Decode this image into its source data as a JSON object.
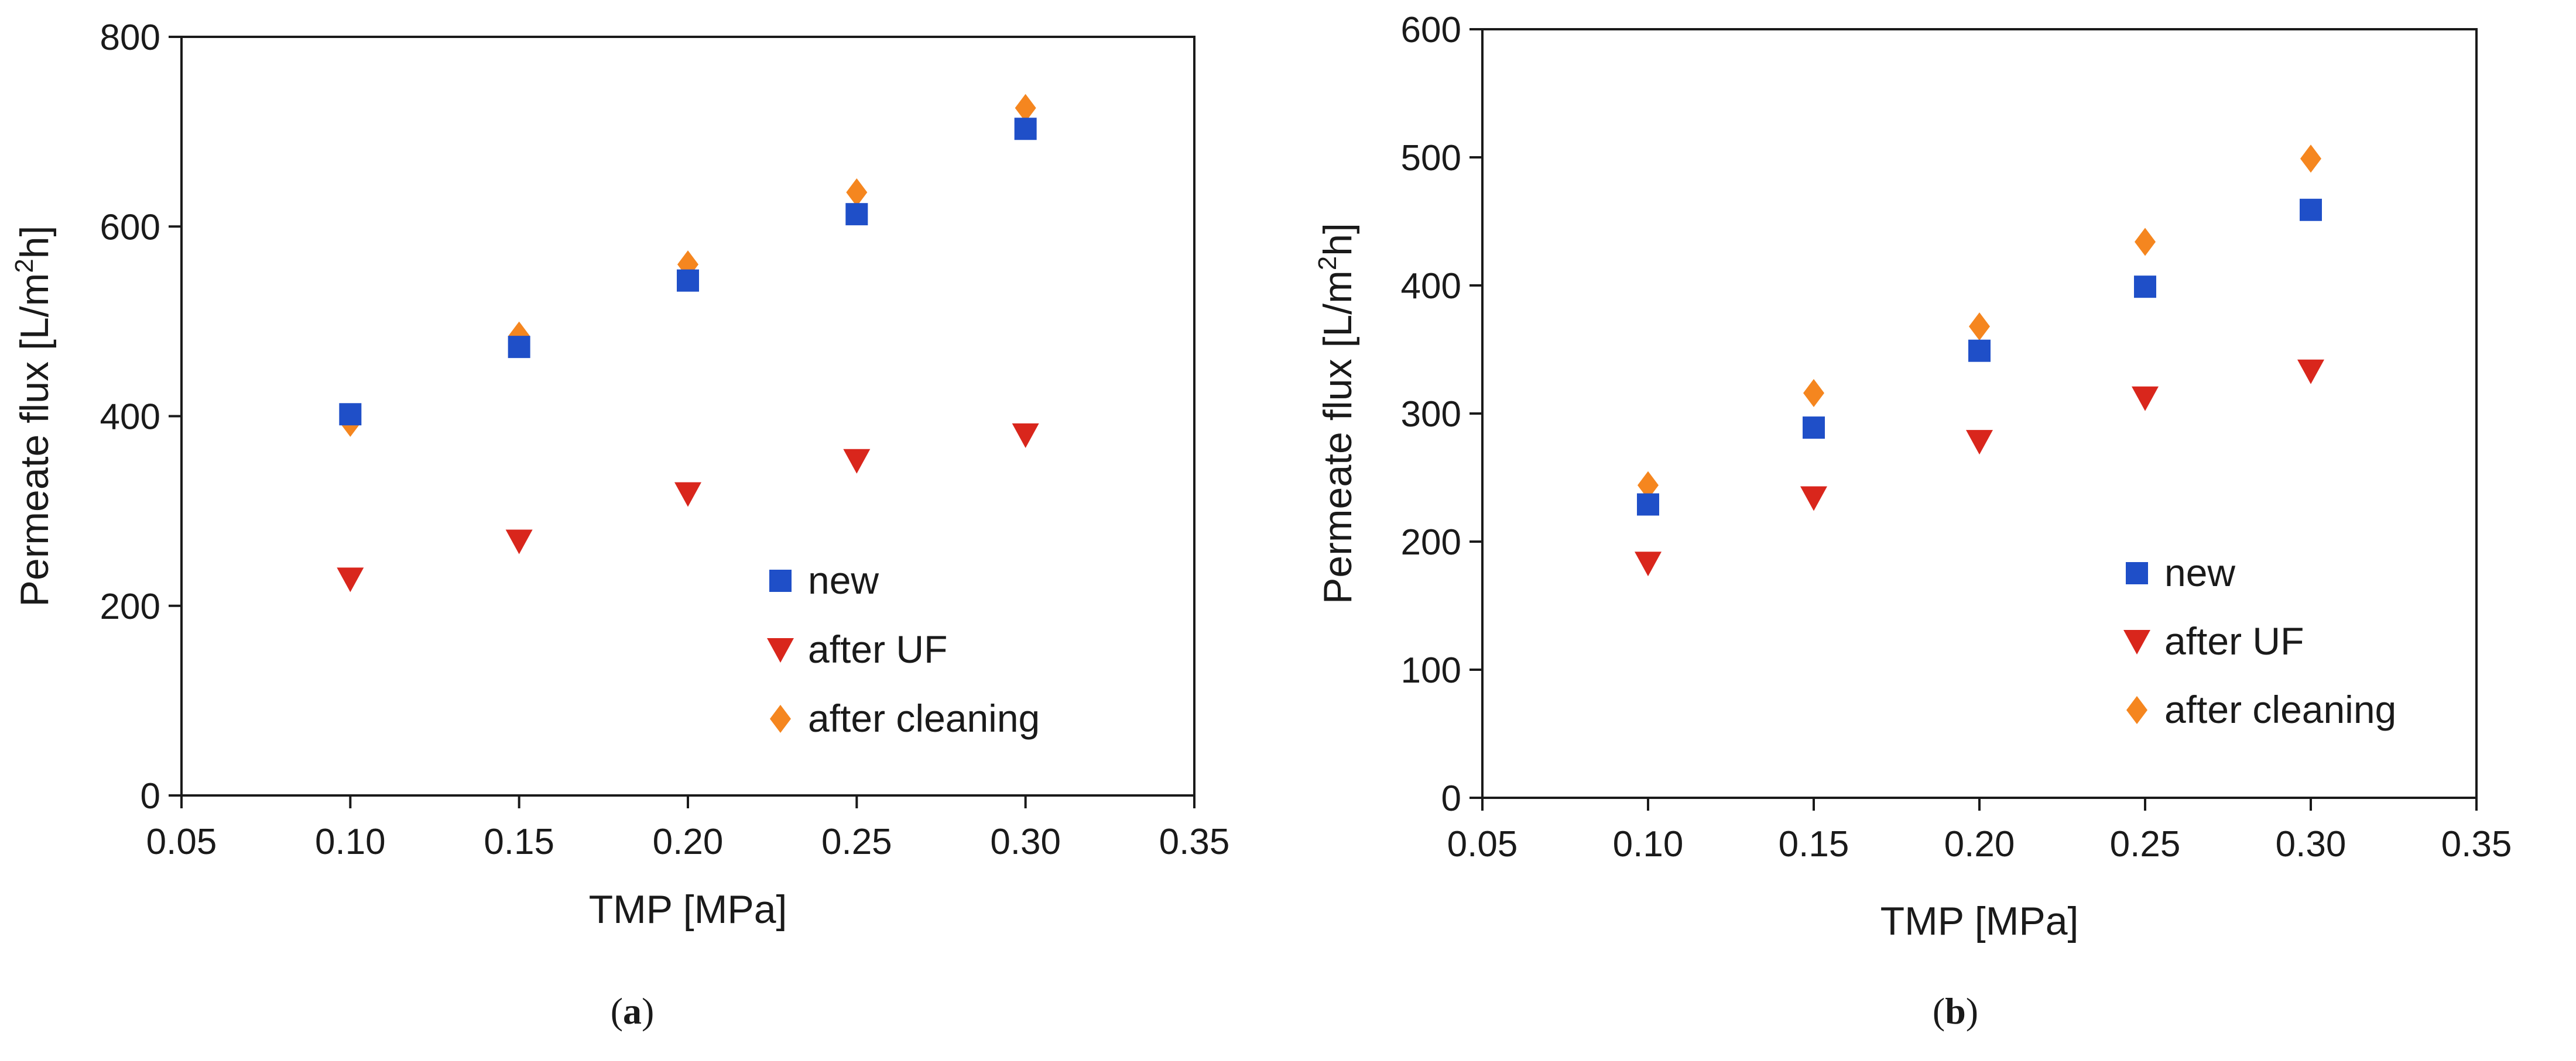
{
  "figure": {
    "panels": [
      "(a)",
      "(b)"
    ]
  },
  "chart_data": [
    {
      "type": "scatter",
      "panel_label_open": "(",
      "panel_label_letter": "a",
      "panel_label_close": ")",
      "xlabel": "TMP [MPa]",
      "ylabel_main": "Permeate flux [L/m",
      "ylabel_sup": "2",
      "ylabel_tail": "h]",
      "xlim": [
        0.05,
        0.35
      ],
      "ylim": [
        0,
        800
      ],
      "xticks": [
        0.05,
        0.1,
        0.15,
        0.2,
        0.25,
        0.3,
        0.35
      ],
      "xtick_labels": [
        "0.05",
        "0.10",
        "0.15",
        "0.20",
        "0.25",
        "0.30",
        "0.35"
      ],
      "yticks": [
        0,
        200,
        400,
        600,
        800
      ],
      "ytick_labels": [
        "0",
        "200",
        "400",
        "600",
        "800"
      ],
      "legend_position": "lower-right",
      "series": [
        {
          "name": "new",
          "marker": "square",
          "color": "#1f4fc8",
          "x": [
            0.1,
            0.15,
            0.2,
            0.25,
            0.3
          ],
          "y": [
            402,
            473,
            543,
            613,
            703
          ]
        },
        {
          "name": "after UF",
          "marker": "triangle-down",
          "color": "#d9261c",
          "x": [
            0.1,
            0.15,
            0.2,
            0.25,
            0.3
          ],
          "y": [
            228,
            268,
            318,
            353,
            380
          ]
        },
        {
          "name": "after cleaning",
          "marker": "diamond",
          "color": "#f5861f",
          "x": [
            0.1,
            0.15,
            0.2,
            0.25,
            0.3
          ],
          "y": [
            393,
            485,
            560,
            636,
            725
          ]
        }
      ]
    },
    {
      "type": "scatter",
      "panel_label_open": "(",
      "panel_label_letter": "b",
      "panel_label_close": ")",
      "xlabel": "TMP [MPa]",
      "ylabel_main": "Permeate flux [L/m",
      "ylabel_sup": "2",
      "ylabel_tail": "h]",
      "xlim": [
        0.05,
        0.35
      ],
      "ylim": [
        0,
        600
      ],
      "xticks": [
        0.05,
        0.1,
        0.15,
        0.2,
        0.25,
        0.3,
        0.35
      ],
      "xtick_labels": [
        "0.05",
        "0.10",
        "0.15",
        "0.20",
        "0.25",
        "0.30",
        "0.35"
      ],
      "yticks": [
        0,
        100,
        200,
        300,
        400,
        500,
        600
      ],
      "ytick_labels": [
        "0",
        "100",
        "200",
        "300",
        "400",
        "500",
        "600"
      ],
      "legend_position": "lower-right",
      "series": [
        {
          "name": "new",
          "marker": "square",
          "color": "#1f4fc8",
          "x": [
            0.1,
            0.15,
            0.2,
            0.25,
            0.3
          ],
          "y": [
            229,
            289,
            349,
            399,
            459
          ]
        },
        {
          "name": "after UF",
          "marker": "triangle-down",
          "color": "#d9261c",
          "x": [
            0.1,
            0.15,
            0.2,
            0.25,
            0.3
          ],
          "y": [
            183,
            234,
            278,
            312,
            333
          ]
        },
        {
          "name": "after cleaning",
          "marker": "diamond",
          "color": "#f5861f",
          "x": [
            0.1,
            0.15,
            0.2,
            0.25,
            0.3
          ],
          "y": [
            244,
            316,
            368,
            434,
            499
          ]
        }
      ]
    }
  ]
}
